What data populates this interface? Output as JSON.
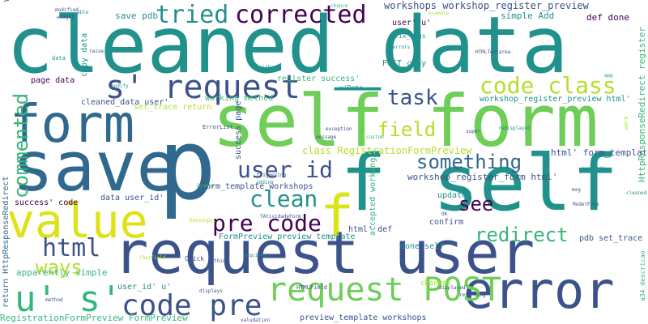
{
  "palette": {
    "purple": "#440154",
    "indigo": "#3b528b",
    "blue": "#31688e",
    "teal": "#21918c",
    "green": "#35b779",
    "lime": "#6ece58",
    "yellowgreen": "#b5de2b",
    "yellow": "#dde318"
  },
  "words": [
    {
      "text": "cleaned_data",
      "color": "teal"
    },
    {
      "text": "self form",
      "color": "lime"
    },
    {
      "text": "save",
      "color": "blue"
    },
    {
      "text": "p",
      "color": "blue"
    },
    {
      "text": "request user",
      "color": "indigo"
    },
    {
      "text": "f self",
      "color": "teal"
    },
    {
      "text": "value",
      "color": "yellow"
    },
    {
      "text": "error",
      "color": "indigo"
    },
    {
      "text": "form",
      "color": "blue"
    },
    {
      "text": "s' request",
      "color": "indigo"
    },
    {
      "text": "f",
      "color": "yellow"
    },
    {
      "text": "request POST",
      "color": "lime"
    },
    {
      "text": "u' s'",
      "color": "green"
    },
    {
      "text": "code pre",
      "color": "indigo"
    },
    {
      "text": "tried",
      "color": "teal"
    },
    {
      "text": "corrected",
      "color": "purple"
    },
    {
      "text": "code class",
      "color": "yellowgreen"
    },
    {
      "text": "task",
      "color": "indigo"
    },
    {
      "text": "user id",
      "color": "indigo"
    },
    {
      "text": "clean",
      "color": "teal"
    },
    {
      "text": "pre code",
      "color": "purple"
    },
    {
      "text": "html",
      "color": "indigo"
    },
    {
      "text": "ways",
      "color": "yellowgreen"
    },
    {
      "text": "commented",
      "color": "green"
    },
    {
      "text": "field",
      "color": "yellowgreen"
    },
    {
      "text": "something",
      "color": "blue"
    },
    {
      "text": "see",
      "color": "purple"
    },
    {
      "text": "redirect",
      "color": "green"
    },
    {
      "text": "workshops workshop_register_preview",
      "color": "indigo"
    },
    {
      "text": "workshops workshop_register_form",
      "color": "indigo"
    },
    {
      "text": "simple Add",
      "color": "teal"
    },
    {
      "text": "def done",
      "color": "purple"
    },
    {
      "text": "HttpResponseRedirect register",
      "color": "green"
    },
    {
      "text": "return HttpResponseRedirect",
      "color": "blue"
    },
    {
      "text": "workshop_register_preview html'",
      "color": "teal"
    },
    {
      "text": "class RegistrationFormPreview",
      "color": "yellowgreen"
    },
    {
      "text": "workshop_register_form html'",
      "color": "indigo"
    },
    {
      "text": "html' form_template",
      "color": "indigo"
    },
    {
      "text": "cleaned_data user'",
      "color": "indigo"
    },
    {
      "text": "set_trace return",
      "color": "yellowgreen"
    },
    {
      "text": "working method",
      "color": "green"
    },
    {
      "text": "register success'",
      "color": "green"
    },
    {
      "text": "POST copy",
      "color": "teal"
    },
    {
      "text": "user' u'",
      "color": "purple"
    },
    {
      "text": "save pdb",
      "color": "teal"
    },
    {
      "text": "page data",
      "color": "purple"
    },
    {
      "text": "copy data",
      "color": "teal"
    },
    {
      "text": "success' code",
      "color": "purple"
    },
    {
      "text": "data user_id'",
      "color": "indigo"
    },
    {
      "text": "form_template workshops",
      "color": "indigo"
    },
    {
      "text": "FormPreview preview_template",
      "color": "teal"
    },
    {
      "text": "success page",
      "color": "indigo"
    },
    {
      "text": "accepted working",
      "color": "green"
    },
    {
      "text": "html' def",
      "color": "indigo"
    },
    {
      "text": "done self",
      "color": "teal"
    },
    {
      "text": "confirm",
      "color": "indigo"
    },
    {
      "text": "updated",
      "color": "teal"
    },
    {
      "text": "pdb set_trace",
      "color": "indigo"
    },
    {
      "text": "apparently simple",
      "color": "green"
    },
    {
      "text": "RegistrationFormPreview FormPreview",
      "color": "green"
    },
    {
      "text": "user_id' u'",
      "color": "teal"
    },
    {
      "text": "preview_template workshops",
      "color": "indigo"
    },
    {
      "text": "HTMLField",
      "color": "indigo"
    },
    {
      "text": "changes",
      "color": "yellowgreen"
    },
    {
      "text": "Click",
      "color": "indigo"
    },
    {
      "text": "fix_imgs",
      "color": "teal"
    },
    {
      "text": "u'Data",
      "color": "teal"
    },
    {
      "text": "data",
      "color": "teal"
    },
    {
      "text": "modified",
      "color": "indigo"
    },
    {
      "text": "able",
      "color": "teal"
    },
    {
      "text": "widget",
      "color": "indigo"
    },
    {
      "text": "raise",
      "color": "indigo"
    },
    {
      "text": "modify",
      "color": "teal"
    },
    {
      "text": "chance",
      "color": "green"
    },
    {
      "text": "_errors",
      "color": "teal"
    },
    {
      "text": "HTMLTextarea",
      "color": "indigo"
    },
    {
      "text": "example",
      "color": "yellowgreen"
    },
    {
      "text": "app",
      "color": "teal"
    },
    {
      "text": "ErrorList",
      "color": "indigo"
    },
    {
      "text": "exception",
      "color": "indigo"
    },
    {
      "text": "super",
      "color": "indigo"
    },
    {
      "text": "redisplayed",
      "color": "teal"
    },
    {
      "text": "either",
      "color": "teal"
    },
    {
      "text": "triggering",
      "color": "indigo"
    },
    {
      "text": "message",
      "color": "indigo"
    },
    {
      "text": "adding",
      "color": "teal"
    },
    {
      "text": "custom",
      "color": "green"
    },
    {
      "text": "Django",
      "color": "green"
    },
    {
      "text": "correctly",
      "color": "teal"
    },
    {
      "text": "msg",
      "color": "indigo"
    },
    {
      "text": "OK",
      "color": "indigo"
    },
    {
      "text": "displayed",
      "color": "indigo"
    },
    {
      "text": "ModelForm",
      "color": "indigo"
    },
    {
      "text": "thing",
      "color": "indigo"
    },
    {
      "text": "displays",
      "color": "indigo"
    },
    {
      "text": "returning",
      "color": "indigo"
    },
    {
      "text": "valudation",
      "color": "indigo"
    },
    {
      "text": "method",
      "color": "indigo"
    },
    {
      "text": "a34_descricao",
      "color": "green"
    },
    {
      "text": "work",
      "color": "yellowgreen"
    },
    {
      "text": "cleaned",
      "color": "teal"
    },
    {
      "text": "TAtividadeForm",
      "color": "indigo"
    },
    {
      "text": "DateInput",
      "color": "yellowgreen"
    },
    {
      "text": "required",
      "color": "teal"
    },
    {
      "text": "CharField",
      "color": "yellowgreen"
    }
  ]
}
